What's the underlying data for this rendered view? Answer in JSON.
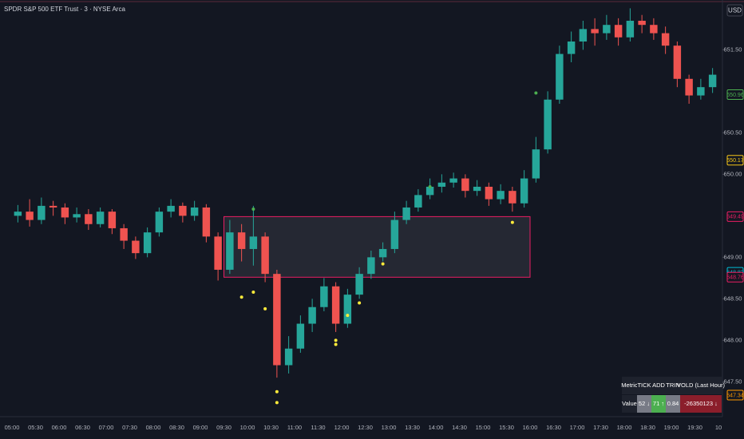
{
  "chart_data": {
    "type": "candlestick",
    "title": "SPDR S&P 500 ETF Trust · 3 · NYSE Arca",
    "currency": "USD",
    "up_color": "#26a69a",
    "down_color": "#ef5350",
    "x": [
      "05:00",
      "05:15",
      "05:30",
      "05:45",
      "06:00",
      "06:15",
      "06:30",
      "06:45",
      "07:00",
      "07:15",
      "07:30",
      "07:45",
      "08:00",
      "08:15",
      "08:30",
      "08:45",
      "09:00",
      "09:15",
      "09:30",
      "09:45",
      "10:00",
      "10:15",
      "10:30",
      "10:45",
      "11:00",
      "11:15",
      "11:30",
      "11:45",
      "12:00",
      "12:15",
      "12:30",
      "12:45",
      "13:00",
      "13:15",
      "13:30",
      "13:45",
      "14:00",
      "14:15",
      "14:30",
      "14:45",
      "15:00",
      "15:15",
      "15:30",
      "15:45",
      "16:00",
      "16:15",
      "16:30",
      "16:45",
      "17:00",
      "17:15",
      "17:30",
      "17:45",
      "18:00",
      "18:15",
      "18:30",
      "18:45",
      "19:00",
      "19:15",
      "19:30",
      "19:45"
    ],
    "open": [
      649.5,
      649.55,
      649.45,
      649.62,
      649.6,
      649.48,
      649.52,
      649.4,
      649.55,
      649.35,
      649.2,
      649.05,
      649.3,
      649.55,
      649.62,
      649.5,
      649.6,
      649.25,
      648.85,
      649.3,
      649.1,
      649.25,
      648.8,
      647.7,
      647.9,
      648.2,
      648.4,
      648.65,
      648.2,
      648.55,
      648.8,
      649.0,
      649.1,
      649.45,
      649.6,
      649.75,
      649.85,
      649.9,
      649.95,
      649.8,
      649.85,
      649.7,
      649.8,
      649.65,
      649.95,
      650.3,
      650.9,
      651.45,
      651.6,
      651.75,
      651.7,
      651.8,
      651.65,
      651.85,
      651.8,
      651.7,
      651.55,
      651.15,
      650.95,
      651.05
    ],
    "high": [
      649.63,
      649.7,
      649.72,
      649.68,
      649.65,
      649.6,
      649.58,
      649.6,
      649.58,
      649.4,
      649.25,
      649.36,
      649.6,
      649.7,
      649.66,
      649.68,
      649.64,
      649.3,
      649.45,
      649.4,
      649.62,
      649.3,
      648.85,
      648.05,
      648.3,
      648.5,
      648.75,
      648.7,
      648.62,
      648.88,
      649.08,
      649.18,
      649.55,
      649.68,
      649.82,
      649.95,
      650.0,
      650.02,
      650.0,
      649.93,
      649.9,
      649.88,
      649.85,
      650.05,
      650.45,
      651.0,
      651.55,
      651.72,
      651.85,
      651.88,
      651.92,
      651.88,
      652.0,
      651.92,
      651.88,
      651.78,
      651.6,
      651.2,
      651.15,
      651.28
    ],
    "low": [
      649.42,
      649.37,
      649.4,
      649.5,
      649.4,
      649.42,
      649.33,
      649.36,
      649.28,
      649.1,
      648.98,
      649.0,
      649.25,
      649.48,
      649.42,
      649.44,
      649.18,
      648.72,
      648.8,
      648.95,
      648.9,
      648.7,
      647.55,
      647.6,
      647.85,
      648.1,
      648.35,
      648.1,
      648.15,
      648.5,
      648.74,
      648.95,
      649.05,
      649.4,
      649.55,
      649.7,
      649.78,
      649.84,
      649.72,
      649.74,
      649.62,
      649.64,
      649.55,
      649.6,
      649.9,
      650.25,
      650.85,
      651.35,
      651.5,
      651.55,
      651.62,
      651.55,
      651.6,
      651.7,
      651.62,
      651.45,
      651.05,
      650.85,
      650.9,
      650.98
    ],
    "close": [
      649.55,
      649.45,
      649.62,
      649.6,
      649.48,
      649.52,
      649.4,
      649.55,
      649.35,
      649.2,
      649.05,
      649.3,
      649.55,
      649.62,
      649.5,
      649.6,
      649.25,
      648.85,
      649.3,
      649.1,
      649.25,
      648.8,
      647.7,
      647.9,
      648.2,
      648.4,
      648.65,
      648.2,
      648.55,
      648.8,
      649.0,
      649.1,
      649.45,
      649.6,
      649.75,
      649.85,
      649.9,
      649.95,
      649.8,
      649.85,
      649.7,
      649.8,
      649.65,
      649.95,
      650.3,
      650.9,
      651.45,
      651.6,
      651.75,
      651.7,
      651.8,
      651.65,
      651.85,
      651.8,
      651.7,
      651.55,
      651.15,
      650.95,
      651.05,
      651.2
    ],
    "xticks": [
      "05:00",
      "05:30",
      "06:00",
      "06:30",
      "07:00",
      "07:30",
      "08:00",
      "08:30",
      "09:00",
      "09:30",
      "10:00",
      "10:30",
      "11:00",
      "11:30",
      "12:00",
      "12:30",
      "13:00",
      "13:30",
      "14:00",
      "14:30",
      "15:00",
      "15:30",
      "16:00",
      "16:30",
      "17:00",
      "17:30",
      "18:00",
      "18:30",
      "19:00",
      "19:30",
      "10"
    ],
    "ylim": [
      647.08,
      652.1
    ],
    "yticks": [
      {
        "value": 651.5,
        "label": "651.50"
      },
      {
        "value": 650.5,
        "label": "650.50"
      },
      {
        "value": 650,
        "label": "650.00"
      },
      {
        "value": 649,
        "label": "649.00"
      },
      {
        "value": 648.5,
        "label": "648.50"
      },
      {
        "value": 648,
        "label": "648.00"
      },
      {
        "value": 647.5,
        "label": "647.50"
      }
    ],
    "levels": [
      {
        "value": 650.96,
        "color": "#4caf50"
      },
      {
        "value": 650.17,
        "color": "#f5c518"
      },
      {
        "value": 649.49,
        "color": "#e91e63"
      },
      {
        "value": 648.82,
        "color": "#00bcd4"
      },
      {
        "value": 648.76,
        "color": "#e91e63"
      },
      {
        "value": 647.34,
        "color": "#ff9800"
      }
    ],
    "zone": {
      "start": "09:30",
      "end": "16:00",
      "top": 649.49,
      "bottom": 648.76,
      "color": "#e91e63"
    },
    "signals": [
      {
        "x": "09:45",
        "y": 648.52,
        "color": "#ffeb3b"
      },
      {
        "x": "10:00",
        "y": 648.58,
        "color": "#ffeb3b"
      },
      {
        "x": "10:15",
        "y": 648.38,
        "color": "#ffeb3b"
      },
      {
        "x": "10:30",
        "y": 647.38,
        "color": "#ffeb3b"
      },
      {
        "x": "10:30",
        "y": 647.25,
        "color": "#ffeb3b"
      },
      {
        "x": "11:45",
        "y": 648.0,
        "color": "#ffeb3b"
      },
      {
        "x": "11:45",
        "y": 647.95,
        "color": "#ffeb3b"
      },
      {
        "x": "12:00",
        "y": 648.3,
        "color": "#ffeb3b"
      },
      {
        "x": "12:15",
        "y": 648.45,
        "color": "#ffeb3b"
      },
      {
        "x": "12:45",
        "y": 648.92,
        "color": "#ffeb3b"
      },
      {
        "x": "15:30",
        "y": 649.42,
        "color": "#ffeb3b"
      },
      {
        "x": "10:00",
        "y": 649.58,
        "color": "#4caf50"
      },
      {
        "x": "13:45",
        "y": 649.85,
        "color": "#4caf50"
      },
      {
        "x": "16:00",
        "y": 650.98,
        "color": "#4caf50"
      }
    ],
    "table": {
      "header": [
        "Metric",
        "TICK",
        "ADD",
        "TRIN",
        "VOLD (Last Hour)"
      ],
      "row": [
        "Value",
        "52 ↓",
        "71 ↑",
        "0.84",
        "-26350123 ↓"
      ],
      "row_colors": [
        "#1e222d",
        "#787b86",
        "#4caf50",
        "#787b86",
        "#8b1e2b"
      ]
    }
  }
}
